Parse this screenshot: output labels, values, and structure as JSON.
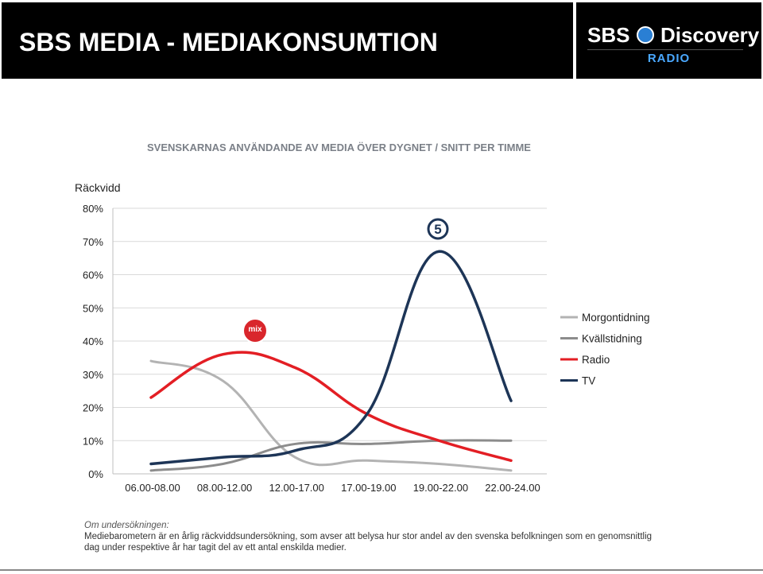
{
  "header": {
    "title": "SBS MEDIA - MEDIAKONSUMTION",
    "logo_text_1": "SBS",
    "logo_text_2": "Discovery",
    "logo_sub": "RADIO"
  },
  "chart_data": {
    "type": "line",
    "title": "SVENSKARNAS ANVÄNDANDE AV MEDIA ÖVER DYGNET / SNITT PER TIMME",
    "ylabel": "Räckvidd",
    "xlabel": "",
    "categories": [
      "06.00-08.00",
      "08.00-12.00",
      "12.00-17.00",
      "17.00-19.00",
      "19.00-22.00",
      "22.00-24.00"
    ],
    "ylim": [
      0,
      80
    ],
    "yticks": [
      "0%",
      "10%",
      "20%",
      "30%",
      "40%",
      "50%",
      "60%",
      "70%",
      "80%"
    ],
    "grid": "horizontal",
    "legend_position": "right",
    "series": [
      {
        "name": "Morgontidning",
        "color": "#b3b3b3",
        "values": [
          34,
          28,
          5,
          4,
          3,
          1
        ]
      },
      {
        "name": "Kvällstidning",
        "color": "#8c8c8c",
        "values": [
          1,
          3,
          9,
          9,
          10,
          10
        ]
      },
      {
        "name": "Radio",
        "color": "#e31e24",
        "values": [
          23,
          36,
          32,
          18,
          10,
          4
        ]
      },
      {
        "name": "TV",
        "color": "#1d3557",
        "values": [
          3,
          5,
          7,
          18,
          67,
          22
        ]
      }
    ],
    "annotations": [
      {
        "label": "mix megapol",
        "icon": "mix-megapol-logo",
        "near_series": "Radio"
      },
      {
        "label": "5",
        "icon": "kanal5-logo",
        "near_series": "TV"
      }
    ]
  },
  "notes": {
    "heading": "Om undersökningen:",
    "body": "Mediebarometern är en årlig räckviddsundersökning, som avser att belysa hur stor andel av den svenska befolkningen som en genomsnittlig dag under respektive år har tagit del av ett antal enskilda medier."
  }
}
